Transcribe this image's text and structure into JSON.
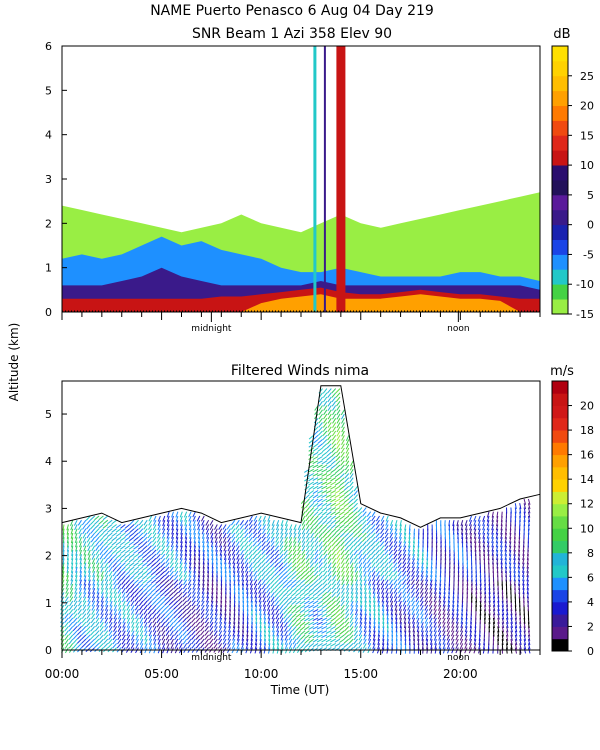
{
  "header": {
    "title_line1": "NAME Puerto Penasco    6 Aug 04 Day 219",
    "title_line2": "SNR Beam 1 Azi 358 Elev 90"
  },
  "shared": {
    "ylabel": "Altitude (km)",
    "xlabel": "Time (UT)",
    "x_tick_labels": [
      "00:00",
      "05:00",
      "10:00",
      "15:00",
      "20:00"
    ],
    "markers": [
      {
        "label": "midnight",
        "time": 7.5
      },
      {
        "label": "noon",
        "time": 19.9
      }
    ]
  },
  "chart_data": [
    {
      "type": "heatmap",
      "title": "SNR Beam 1 Azi 358 Elev 90",
      "xlim": [
        0,
        24
      ],
      "ylim": [
        0,
        6
      ],
      "y_ticks": [
        0,
        1,
        2,
        3,
        4,
        5,
        6
      ],
      "colorbar": {
        "unit": "dB",
        "ticks": [
          -15,
          -10,
          -5,
          0,
          5,
          10,
          15,
          20,
          25
        ],
        "levels": [
          -15,
          -12.5,
          -10,
          -7.5,
          -5,
          -2.5,
          0,
          2.5,
          5,
          7.5,
          10,
          12.5,
          15,
          17.5,
          20,
          22.5,
          25,
          27.5,
          30
        ],
        "colors": [
          "#99ee44",
          "#44d244",
          "#22c8c8",
          "#1e90ff",
          "#1a44e6",
          "#1a22b0",
          "#3a1a8a",
          "#5a1a9a",
          "#22115a",
          "#2a0d6e",
          "#c81414",
          "#e0281a",
          "#f04a10",
          "#ff7a00",
          "#ffa000",
          "#ffbe00",
          "#ffd200",
          "#ffe000"
        ]
      },
      "layers": [
        {
          "level_db": -15,
          "top_km": [
            2.4,
            2.3,
            2.2,
            2.1,
            2.0,
            1.9,
            1.8,
            1.9,
            2.0,
            2.2,
            2.0,
            1.9,
            1.8,
            2.0,
            2.2,
            2.0,
            1.9,
            2.0,
            2.1,
            2.2,
            2.3,
            2.4,
            2.5,
            2.6,
            2.7
          ]
        },
        {
          "level_db": -7,
          "top_km": [
            1.2,
            1.3,
            1.2,
            1.3,
            1.5,
            1.7,
            1.5,
            1.6,
            1.4,
            1.3,
            1.2,
            1.0,
            0.9,
            0.9,
            1.0,
            0.9,
            0.8,
            0.8,
            0.8,
            0.8,
            0.9,
            0.9,
            0.8,
            0.8,
            0.7
          ]
        },
        {
          "level_db": 2,
          "top_km": [
            0.6,
            0.6,
            0.6,
            0.7,
            0.8,
            1.0,
            0.8,
            0.7,
            0.6,
            0.6,
            0.6,
            0.6,
            0.6,
            0.7,
            0.6,
            0.6,
            0.6,
            0.6,
            0.6,
            0.6,
            0.6,
            0.6,
            0.6,
            0.6,
            0.5
          ]
        },
        {
          "level_db": 12,
          "top_km": [
            0.3,
            0.3,
            0.3,
            0.3,
            0.3,
            0.3,
            0.3,
            0.3,
            0.35,
            0.35,
            0.4,
            0.45,
            0.5,
            0.55,
            0.45,
            0.4,
            0.4,
            0.45,
            0.5,
            0.45,
            0.4,
            0.4,
            0.35,
            0.3,
            0.3
          ]
        },
        {
          "level_db": 22,
          "top_km": [
            0,
            0,
            0,
            0,
            0,
            0,
            0,
            0,
            0,
            0,
            0.2,
            0.3,
            0.35,
            0.4,
            0.3,
            0.3,
            0.3,
            0.35,
            0.4,
            0.35,
            0.3,
            0.3,
            0.25,
            0,
            0
          ]
        }
      ],
      "spike_columns": [
        {
          "time": 12.7,
          "width_h": 0.15,
          "top_km": 6,
          "level_db": -10
        },
        {
          "time": 13.2,
          "width_h": 0.1,
          "top_km": 6,
          "level_db": 0
        },
        {
          "time": 14.0,
          "width_h": 0.45,
          "top_km": 6,
          "level_db": 10
        }
      ]
    },
    {
      "type": "scatter",
      "title": "Filtered Winds nima",
      "xlim": [
        0,
        24
      ],
      "ylim": [
        0,
        5.7
      ],
      "x_ticks": [
        0,
        5,
        10,
        15,
        20
      ],
      "y_ticks": [
        0,
        1,
        2,
        3,
        4,
        5
      ],
      "colorbar": {
        "unit": "m/s",
        "ticks": [
          0,
          2,
          4,
          6,
          8,
          10,
          12,
          14,
          16,
          18,
          20
        ],
        "levels": [
          0,
          1,
          2,
          3,
          4,
          5,
          6,
          7,
          8,
          9,
          10,
          11,
          12,
          13,
          14,
          15,
          16,
          17,
          18,
          19,
          20,
          21,
          22
        ],
        "colors": [
          "#000000",
          "#5a1a8a",
          "#3a1a9a",
          "#1a1ad0",
          "#1a44e6",
          "#1e90ff",
          "#22c8c8",
          "#22b4d8",
          "#33cc66",
          "#44d244",
          "#66dd44",
          "#99ee44",
          "#ccee33",
          "#ffd200",
          "#ffbe00",
          "#ffa000",
          "#ff7a00",
          "#f04a10",
          "#e0281a",
          "#d01818",
          "#c81414",
          "#b00010"
        ]
      },
      "wind_top_km": [
        2.7,
        2.8,
        2.9,
        2.7,
        2.8,
        2.9,
        3.0,
        2.9,
        2.7,
        2.8,
        2.9,
        2.8,
        2.7,
        5.6,
        5.6,
        3.1,
        2.9,
        2.8,
        2.6,
        2.8,
        2.8,
        2.9,
        3.0,
        3.2,
        3.3
      ],
      "wind_speed_ms": [
        9,
        7,
        7,
        6,
        6,
        5,
        5,
        4,
        4,
        5,
        6,
        6,
        9,
        7,
        10,
        7,
        6,
        5,
        5,
        4,
        4,
        3,
        3,
        3,
        3
      ],
      "wind_direction_deg": [
        200,
        210,
        215,
        220,
        220,
        215,
        210,
        205,
        200,
        200,
        205,
        210,
        220,
        230,
        225,
        210,
        205,
        200,
        195,
        190,
        190,
        185,
        180,
        180,
        180
      ]
    }
  ]
}
